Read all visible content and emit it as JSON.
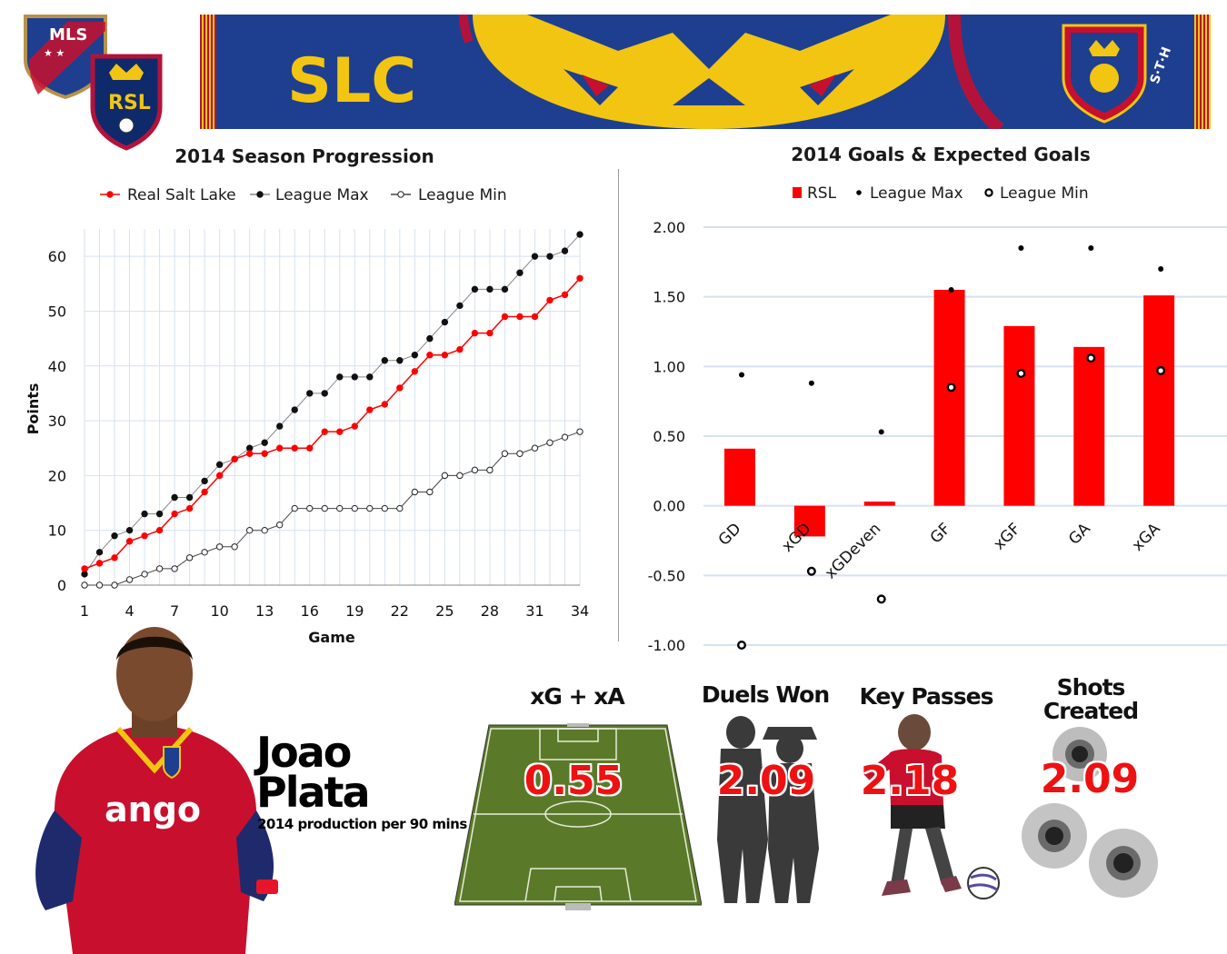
{
  "header": {
    "mls_logo_text": "MLS",
    "rsl_logo_text": "RSL",
    "scarf_text_left": "SLC",
    "scarf_text_right": "S·T·H"
  },
  "colors": {
    "rsl_red": "#ff0000",
    "navy": "#1e3f8f",
    "gold": "#f2c512",
    "claret": "#b3133b"
  },
  "chart_data": [
    {
      "type": "line",
      "title": "2014 Season Progression",
      "xlabel": "Game",
      "ylabel": "Points",
      "xlim": [
        1,
        34
      ],
      "ylim": [
        0,
        65
      ],
      "x_ticks": [
        1,
        4,
        7,
        10,
        13,
        16,
        19,
        22,
        25,
        28,
        31,
        34
      ],
      "y_ticks": [
        0,
        10,
        20,
        30,
        40,
        50,
        60
      ],
      "grid": true,
      "legend_position": "top",
      "series": [
        {
          "name": "Real Salt Lake",
          "color": "#ff0000",
          "values": [
            3,
            4,
            5,
            8,
            9,
            10,
            13,
            14,
            17,
            20,
            23,
            24,
            24,
            25,
            25,
            25,
            28,
            28,
            29,
            32,
            33,
            36,
            39,
            42,
            42,
            43,
            46,
            46,
            49,
            49,
            49,
            52,
            53,
            56
          ]
        },
        {
          "name": "League Max",
          "color": "#000000",
          "values": [
            2,
            6,
            9,
            10,
            13,
            13,
            16,
            16,
            19,
            22,
            23,
            25,
            26,
            29,
            32,
            35,
            35,
            38,
            38,
            38,
            41,
            41,
            42,
            45,
            48,
            51,
            54,
            54,
            54,
            57,
            60,
            60,
            61,
            64
          ]
        },
        {
          "name": "League Min",
          "color": "#ffffff",
          "values": [
            0,
            0,
            0,
            1,
            2,
            3,
            3,
            5,
            6,
            7,
            7,
            10,
            10,
            11,
            14,
            14,
            14,
            14,
            14,
            14,
            14,
            14,
            17,
            17,
            20,
            20,
            21,
            21,
            24,
            24,
            25,
            26,
            27,
            28
          ]
        }
      ]
    },
    {
      "type": "bar",
      "title": "2014 Goals & Expected Goals",
      "categories": [
        "GD",
        "xGD",
        "xGDeven",
        "GF",
        "xGF",
        "GA",
        "xGA"
      ],
      "ylim": [
        -1.0,
        2.0
      ],
      "y_ticks": [
        "2.00",
        "1.50",
        "1.00",
        "0.50",
        "0.00",
        "-0.50",
        "-1.00"
      ],
      "grid": true,
      "legend_position": "top",
      "series": [
        {
          "name": "RSL",
          "color": "#ff0000",
          "values": [
            0.41,
            -0.22,
            0.03,
            1.55,
            1.29,
            1.14,
            1.51
          ]
        },
        {
          "name": "League Max",
          "color": "#000000",
          "values": [
            0.94,
            0.88,
            0.53,
            1.55,
            1.85,
            1.85,
            1.7
          ]
        },
        {
          "name": "League Min",
          "color": "#ffffff",
          "values": [
            -1.0,
            -0.47,
            -0.67,
            0.85,
            0.95,
            1.06,
            0.97
          ]
        }
      ]
    }
  ],
  "player": {
    "first_name": "Joao",
    "last_name": "Plata",
    "subtitle": "2014 production per 90 mins",
    "jersey_text": "ango"
  },
  "stats": [
    {
      "label": "xG + xA",
      "value": "0.55"
    },
    {
      "label": "Duels Won",
      "value": "2.09"
    },
    {
      "label": "Key Passes",
      "value": "2.18"
    },
    {
      "label_line1": "Shots",
      "label_line2": "Created",
      "value": "2.09"
    }
  ]
}
